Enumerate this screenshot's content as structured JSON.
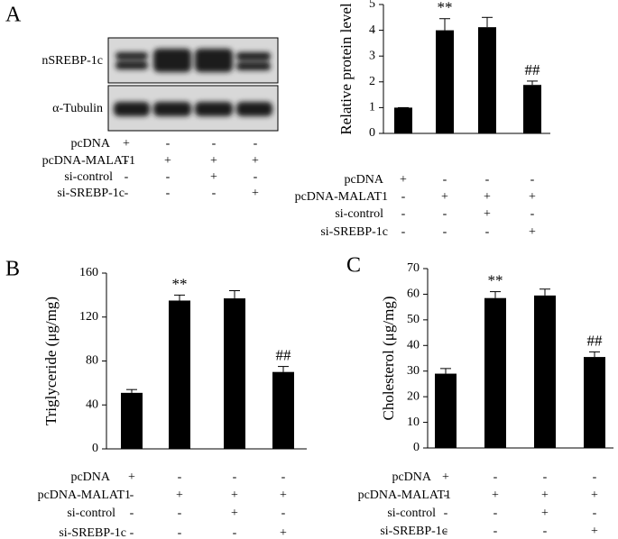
{
  "panel_labels": [
    "A",
    "B",
    "C"
  ],
  "blot": {
    "rows": [
      "nSREBP-1c",
      "α-Tubulin"
    ],
    "conditions": {
      "labels": [
        "pcDNA",
        "pcDNA-MALAT1",
        "si-control",
        "si-SREBP-1c"
      ],
      "signs": [
        [
          "+",
          "-",
          "-",
          "-"
        ],
        [
          "-",
          "+",
          "+",
          "+"
        ],
        [
          "-",
          "-",
          "+",
          "-"
        ],
        [
          "-",
          "-",
          "-",
          "+"
        ]
      ]
    }
  },
  "chart_data": [
    {
      "type": "bar",
      "ylabel": "Relative protein level",
      "values": [
        1,
        4.0,
        4.12,
        1.88
      ],
      "errors": [
        0,
        0.45,
        0.38,
        0.15
      ],
      "annotations": [
        {
          "at": 1,
          "text": "**"
        },
        {
          "at": 3,
          "text": "##"
        }
      ],
      "color": "#000000",
      "ylim": [
        0,
        5
      ],
      "yticks": [
        0,
        1,
        2,
        3,
        4,
        5
      ],
      "conditions": {
        "labels": [
          "pcDNA",
          "pcDNA-MALAT1",
          "si-control",
          "si-SREBP-1c"
        ],
        "signs": [
          [
            "+",
            "-",
            "-",
            "-"
          ],
          [
            "-",
            "+",
            "+",
            "+"
          ],
          [
            "-",
            "-",
            "+",
            "-"
          ],
          [
            "-",
            "-",
            "-",
            "+"
          ]
        ]
      }
    },
    {
      "type": "bar",
      "ylabel": "Triglyceride (μg/mg)",
      "values": [
        51,
        135,
        137,
        70
      ],
      "errors": [
        3,
        5,
        7,
        5
      ],
      "annotations": [
        {
          "at": 1,
          "text": "**"
        },
        {
          "at": 3,
          "text": "##"
        }
      ],
      "color": "#000000",
      "ylim": [
        0,
        160
      ],
      "yticks": [
        0,
        40,
        80,
        120,
        160
      ],
      "conditions": {
        "labels": [
          "pcDNA",
          "pcDNA-MALAT1",
          "si-control",
          "si-SREBP-1c"
        ],
        "signs": [
          [
            "+",
            "-",
            "-",
            "-"
          ],
          [
            "-",
            "+",
            "+",
            "+"
          ],
          [
            "-",
            "-",
            "+",
            "-"
          ],
          [
            "-",
            "-",
            "-",
            "+"
          ]
        ]
      }
    },
    {
      "type": "bar",
      "ylabel": "Cholesterol (μg/mg)",
      "values": [
        29,
        58.5,
        59.5,
        35.5
      ],
      "errors": [
        2,
        2.5,
        2.5,
        2
      ],
      "annotations": [
        {
          "at": 1,
          "text": "**"
        },
        {
          "at": 3,
          "text": "##"
        }
      ],
      "color": "#000000",
      "ylim": [
        0,
        70
      ],
      "yticks": [
        0,
        10,
        20,
        30,
        40,
        50,
        60,
        70
      ],
      "conditions": {
        "labels": [
          "pcDNA",
          "pcDNA-MALAT1",
          "si-control",
          "si-SREBP-1c"
        ],
        "signs": [
          [
            "+",
            "-",
            "-",
            "-"
          ],
          [
            "-",
            "+",
            "+",
            "+"
          ],
          [
            "-",
            "-",
            "+",
            "-"
          ],
          [
            "-",
            "-",
            "-",
            "+"
          ]
        ]
      }
    }
  ]
}
